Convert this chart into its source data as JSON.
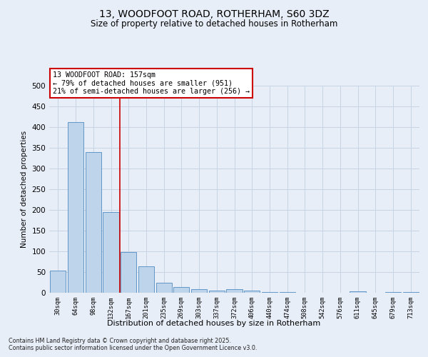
{
  "title": "13, WOODFOOT ROAD, ROTHERHAM, S60 3DZ",
  "subtitle": "Size of property relative to detached houses in Rotherham",
  "xlabel": "Distribution of detached houses by size in Rotherham",
  "ylabel": "Number of detached properties",
  "categories": [
    "30sqm",
    "64sqm",
    "98sqm",
    "132sqm",
    "167sqm",
    "201sqm",
    "235sqm",
    "269sqm",
    "303sqm",
    "337sqm",
    "372sqm",
    "406sqm",
    "440sqm",
    "474sqm",
    "508sqm",
    "542sqm",
    "576sqm",
    "611sqm",
    "645sqm",
    "679sqm",
    "713sqm"
  ],
  "values": [
    53,
    412,
    340,
    195,
    98,
    63,
    25,
    14,
    8,
    6,
    9,
    5,
    2,
    1,
    0,
    0,
    0,
    3,
    0,
    2,
    2
  ],
  "bar_color": "#bdd4ea",
  "bar_edge_color": "#6096c8",
  "grid_color": "#c8d4e4",
  "background_color": "#e8eef8",
  "vline_color": "#cc0000",
  "annotation_text": "13 WOODFOOT ROAD: 157sqm\n← 79% of detached houses are smaller (951)\n21% of semi-detached houses are larger (256) →",
  "annotation_box_color": "#ffffff",
  "annotation_box_edge": "#cc0000",
  "footer": "Contains HM Land Registry data © Crown copyright and database right 2025.\nContains public sector information licensed under the Open Government Licence v3.0.",
  "ylim": [
    0,
    500
  ],
  "yticks": [
    0,
    50,
    100,
    150,
    200,
    250,
    300,
    350,
    400,
    450,
    500
  ]
}
